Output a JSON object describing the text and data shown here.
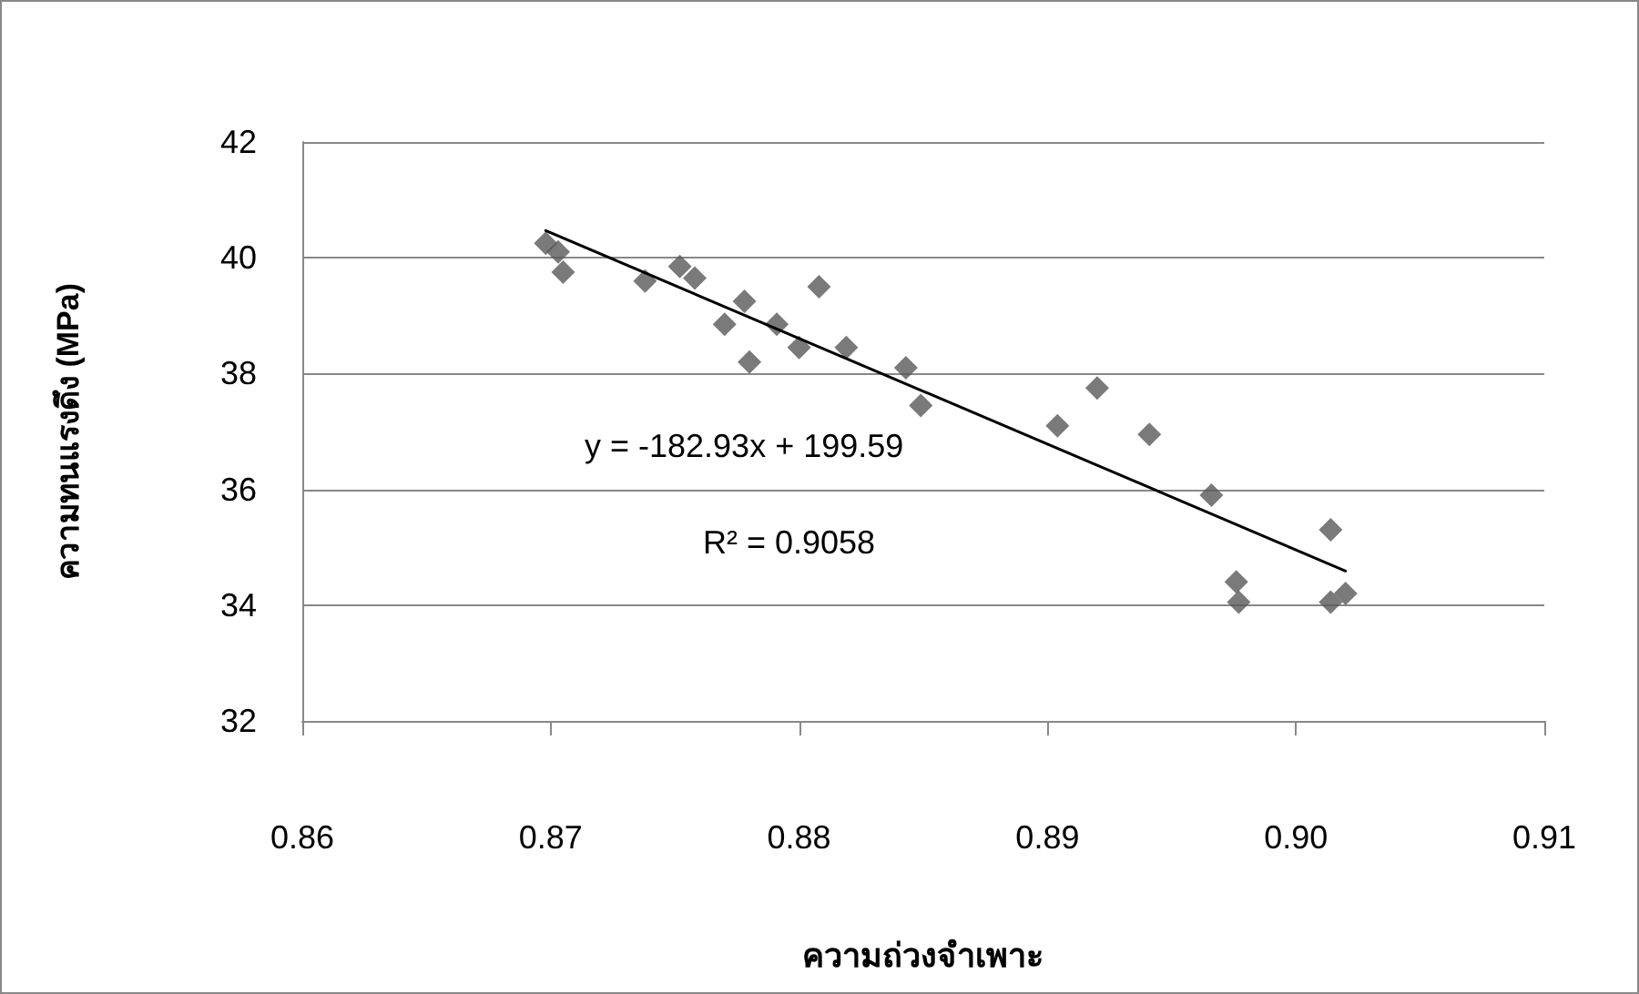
{
  "chart_data": {
    "type": "scatter",
    "xlabel": "ความถ่วงจำเพาะ",
    "ylabel": "ความทนแรงดึง (MPa)",
    "annotations": [
      "y = -182.93x + 199.59",
      "R² = 0.9058"
    ],
    "xlim": [
      0.86,
      0.91
    ],
    "xticks": [
      0.86,
      0.87,
      0.88,
      0.89,
      {
        "value": 0.9,
        "label": "0.90"
      },
      0.91
    ],
    "ylim": [
      32,
      42
    ],
    "yticks": [
      32,
      34,
      36,
      38,
      40,
      42
    ],
    "grid": "y",
    "series": [
      {
        "color": "#595959",
        "marker": "diamond",
        "x": [
          0.8698,
          0.8703,
          0.8705,
          0.8738,
          0.8752,
          0.8758,
          0.877,
          0.8778,
          0.878,
          0.8791,
          0.88,
          0.8808,
          0.8819,
          0.8843,
          0.8849,
          0.8904,
          0.892,
          0.8941,
          0.8966,
          0.8976,
          0.8977,
          0.9014,
          0.9014,
          0.902
        ],
        "values": [
          40.25,
          40.1,
          39.75,
          39.6,
          39.85,
          39.65,
          38.85,
          39.25,
          38.2,
          38.85,
          38.45,
          39.5,
          38.45,
          38.1,
          37.45,
          37.1,
          37.75,
          36.95,
          35.9,
          34.4,
          34.05,
          35.3,
          34.05,
          34.2
        ]
      },
      {
        "type": "line",
        "color": "#000000",
        "marker": "none",
        "line_style": "solid",
        "x": [
          0.8698,
          0.902
        ],
        "values": [
          40.47,
          34.59
        ]
      }
    ]
  }
}
